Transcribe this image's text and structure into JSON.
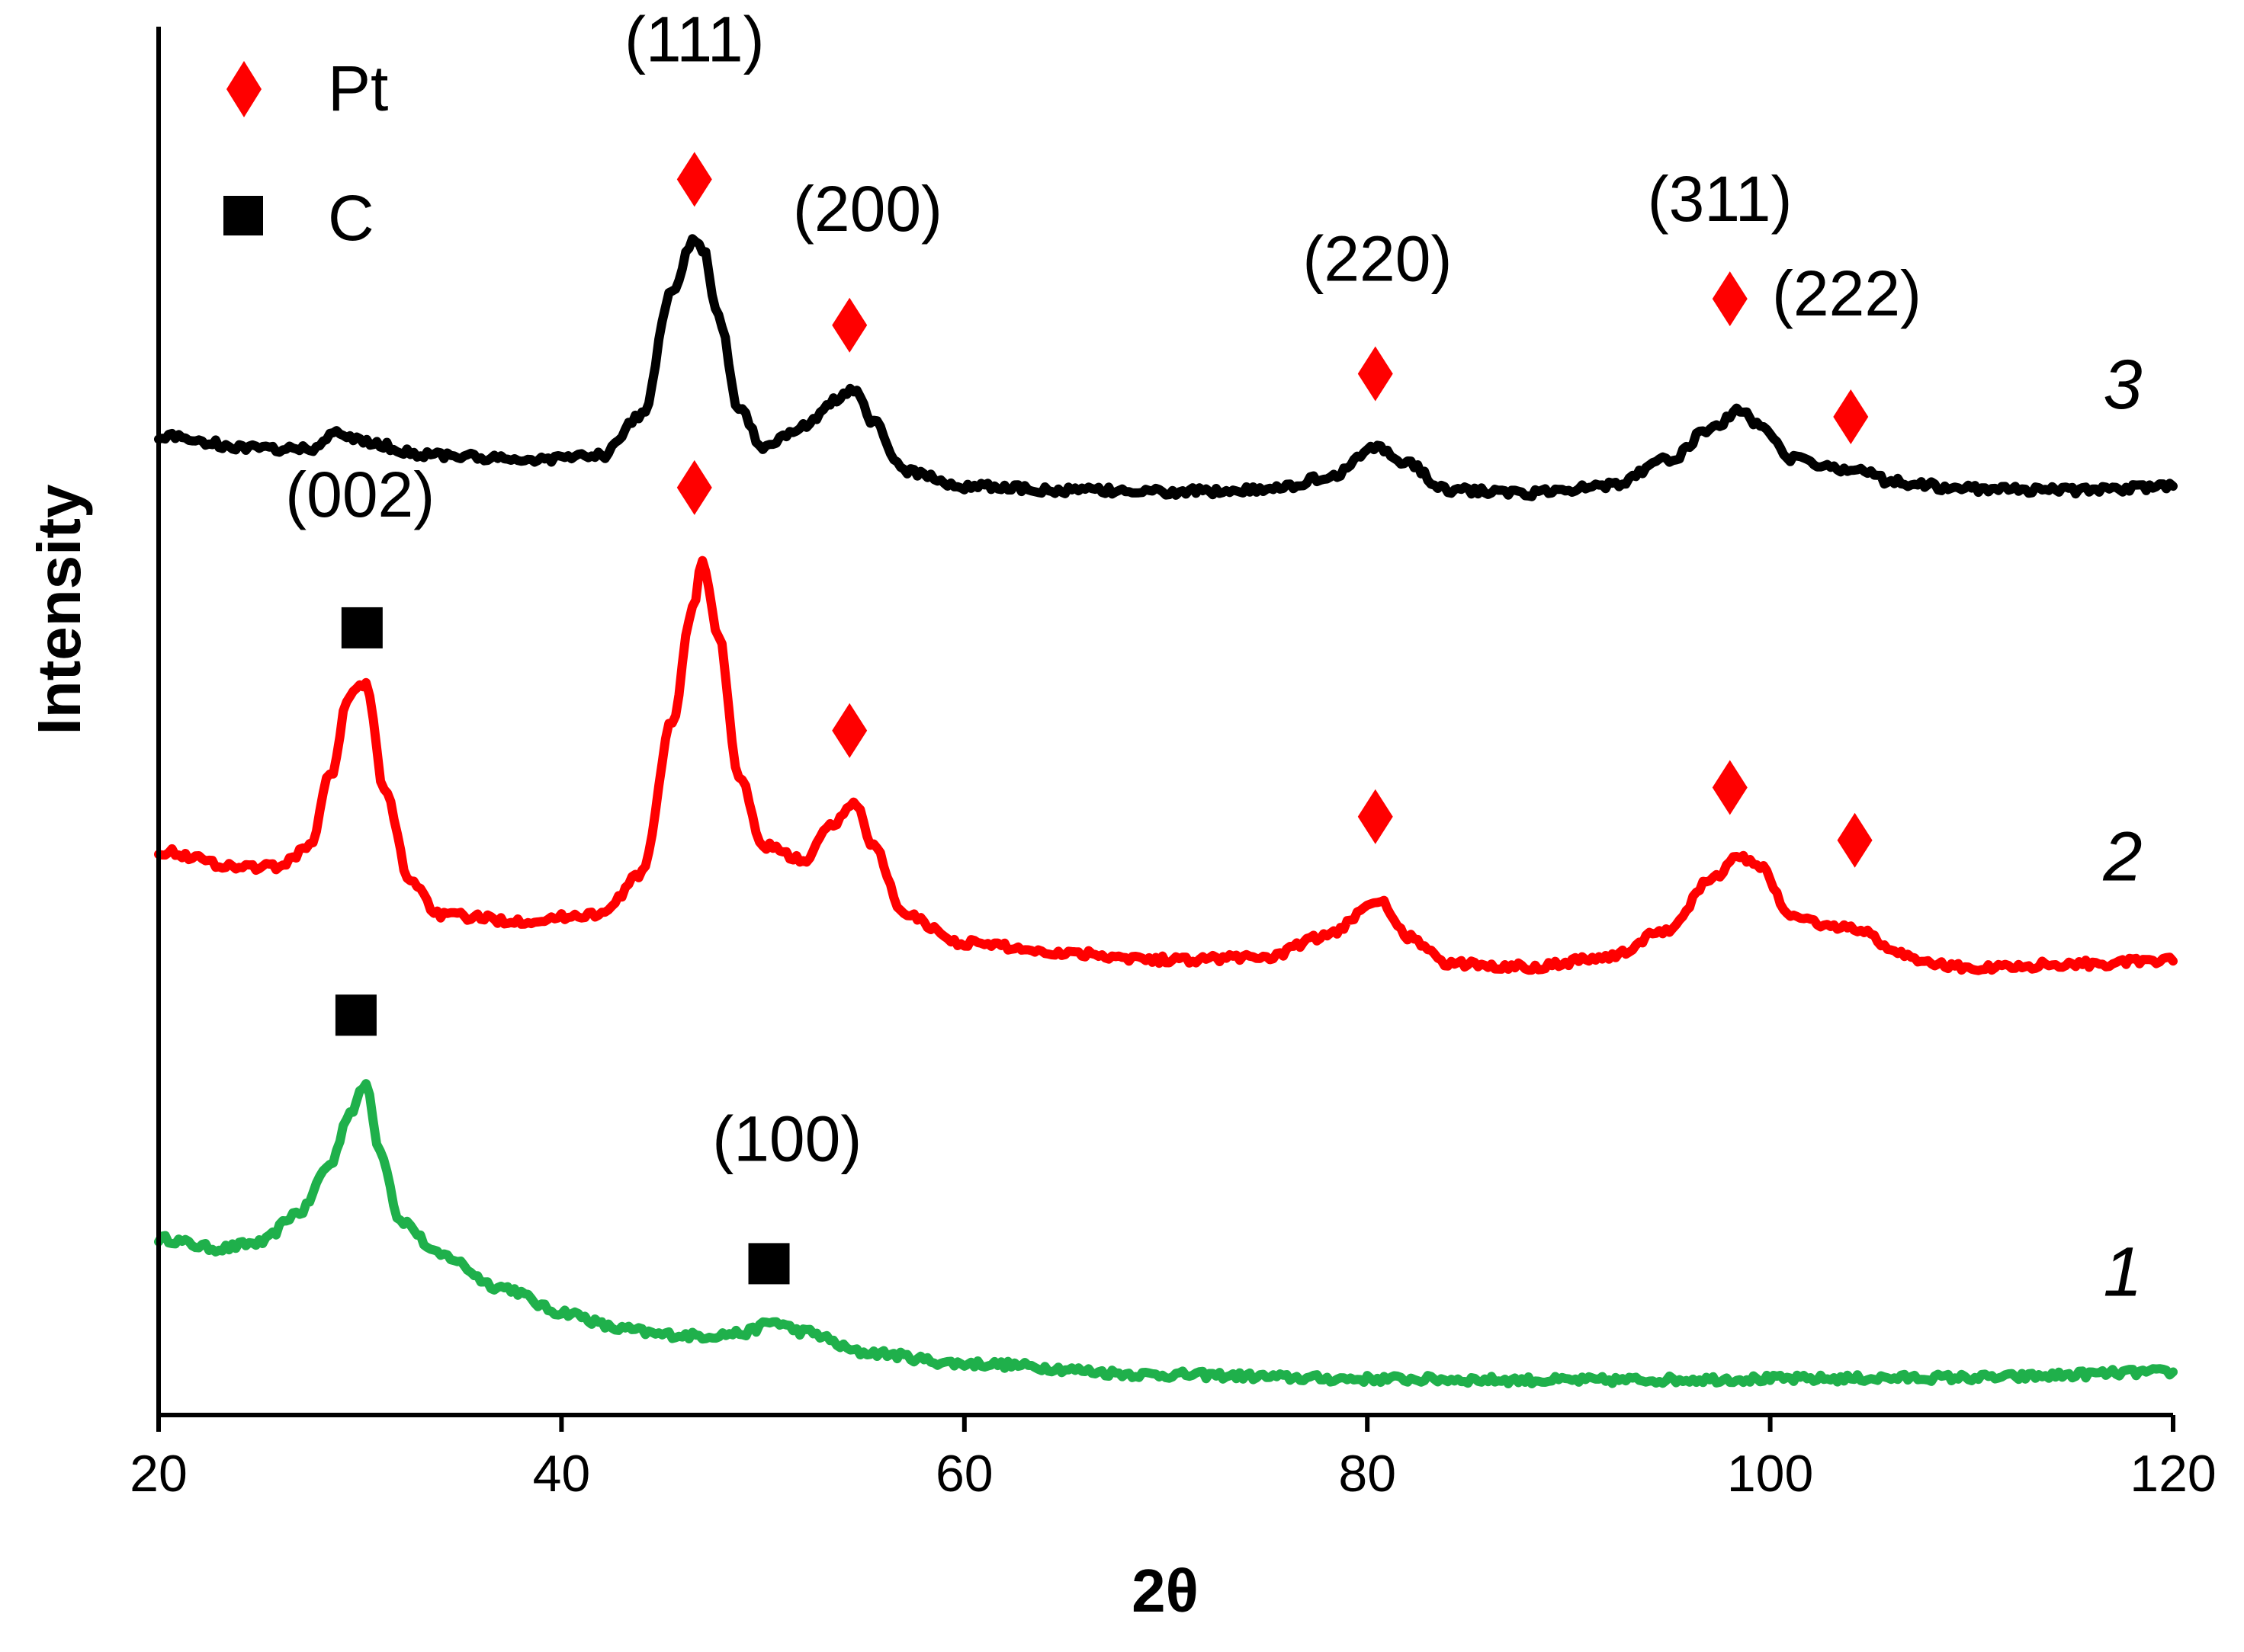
{
  "chart_data": {
    "type": "line",
    "title": "",
    "xlabel": "2θ",
    "ylabel": "Intensity",
    "xlim": [
      20,
      120
    ],
    "ylim": [
      0,
      100
    ],
    "xticks": [
      20,
      40,
      60,
      80,
      100,
      120
    ],
    "xtick_labels": [
      "20",
      "40",
      "60",
      "80",
      "100",
      "120"
    ],
    "grid": false,
    "legend": {
      "position": "top-left",
      "entries": [
        {
          "label": "Pt",
          "marker": "diamond",
          "color": "#ff0000"
        },
        {
          "label": "C",
          "marker": "square",
          "color": "#000000"
        }
      ]
    },
    "series": [
      {
        "name": "1",
        "color": "#1fb04b",
        "x": [
          20,
          23,
          25,
          27,
          28.5,
          29.5,
          30.3,
          31,
          32,
          34,
          37,
          40,
          43,
          45,
          47,
          49,
          50.5,
          52,
          55,
          60,
          70,
          80,
          90,
          100,
          110,
          120
        ],
        "y": [
          12.7,
          12.0,
          12.4,
          14.6,
          18.0,
          21.8,
          23.8,
          19.0,
          14.0,
          11.5,
          9.2,
          7.4,
          6.2,
          5.8,
          5.7,
          5.9,
          6.7,
          6.0,
          4.5,
          3.7,
          2.9,
          2.6,
          2.5,
          2.6,
          2.7,
          3.1
        ]
      },
      {
        "name": "2",
        "color": "#ff0000",
        "x": [
          20,
          24,
          26,
          27.5,
          28.5,
          29.5,
          30.3,
          31.2,
          32.5,
          34,
          38,
          42,
          44,
          45.5,
          46.5,
          47,
          47.8,
          48.8,
          50,
          52,
          53.5,
          54.5,
          55.5,
          57,
          60,
          65,
          70,
          75,
          78,
          80.5,
          82,
          84,
          88,
          92,
          95,
          97,
          98.5,
          99.5,
          101,
          103,
          104.5,
          106,
          108,
          110,
          115,
          120
        ],
        "y": [
          40.6,
          39.5,
          39.5,
          41.0,
          46.0,
          52.0,
          52.6,
          45.0,
          38.5,
          36.0,
          35.6,
          36.1,
          39.0,
          50.0,
          58.0,
          61.5,
          56.0,
          46.0,
          41.0,
          40.0,
          42.5,
          44.2,
          41.0,
          36.0,
          34.0,
          33.3,
          32.8,
          33.0,
          34.5,
          37.1,
          34.5,
          32.5,
          32.3,
          33.0,
          35.0,
          38.5,
          40.2,
          39.5,
          36.0,
          35.2,
          35.0,
          33.5,
          32.5,
          32.2,
          32.5,
          32.7
        ]
      },
      {
        "name": "3",
        "color": "#000000",
        "x": [
          20,
          25,
          27.5,
          29,
          30.5,
          33,
          38,
          42,
          44,
          45.5,
          46.5,
          47,
          47.8,
          48.8,
          50,
          52,
          53.5,
          54.5,
          55.5,
          57,
          60,
          65,
          70,
          75,
          78,
          80.5,
          82,
          84,
          88,
          92,
          95,
          97,
          98.5,
          99.5,
          101,
          103,
          104.5,
          106,
          110,
          115,
          120
        ],
        "y": [
          70.5,
          69.6,
          69.6,
          70.7,
          70.0,
          69.2,
          68.8,
          69.1,
          72.0,
          81.0,
          84.5,
          84.0,
          79.0,
          72.5,
          69.8,
          71.2,
          73.0,
          73.9,
          71.5,
          68.0,
          66.9,
          66.6,
          66.5,
          66.6,
          67.5,
          69.7,
          68.5,
          66.6,
          66.4,
          67.0,
          68.8,
          71.0,
          72.3,
          71.3,
          68.9,
          68.2,
          68.2,
          67.2,
          66.7,
          66.6,
          66.9
        ]
      }
    ],
    "annotations": [
      {
        "text": "(111)",
        "x": 46.6,
        "y": 97.5
      },
      {
        "text": "(200)",
        "x": 55.2,
        "y": 85.3
      },
      {
        "text": "(220)",
        "x": 80.5,
        "y": 81.7
      },
      {
        "text": "(311)",
        "x": 97.5,
        "y": 86.0
      },
      {
        "text": "(222)",
        "x": 103.8,
        "y": 79.2
      },
      {
        "text": "(002)",
        "x": 30.0,
        "y": 64.7
      },
      {
        "text": "(100)",
        "x": 51.2,
        "y": 18.3
      }
    ],
    "markers": [
      {
        "kind": "Pt",
        "shape": "diamond",
        "x": 46.6,
        "y": 89.0
      },
      {
        "kind": "Pt",
        "shape": "diamond",
        "x": 54.3,
        "y": 78.5
      },
      {
        "kind": "Pt",
        "shape": "diamond",
        "x": 80.4,
        "y": 75.0
      },
      {
        "kind": "Pt",
        "shape": "diamond",
        "x": 98.0,
        "y": 80.4
      },
      {
        "kind": "Pt",
        "shape": "diamond",
        "x": 104.0,
        "y": 71.9
      },
      {
        "kind": "Pt",
        "shape": "diamond",
        "x": 46.6,
        "y": 66.8
      },
      {
        "kind": "Pt",
        "shape": "diamond",
        "x": 54.3,
        "y": 49.3
      },
      {
        "kind": "Pt",
        "shape": "diamond",
        "x": 80.4,
        "y": 43.1
      },
      {
        "kind": "Pt",
        "shape": "diamond",
        "x": 98.0,
        "y": 45.2
      },
      {
        "kind": "Pt",
        "shape": "diamond",
        "x": 104.2,
        "y": 41.4
      },
      {
        "kind": "C",
        "shape": "square",
        "x": 30.1,
        "y": 56.7
      },
      {
        "kind": "C",
        "shape": "square",
        "x": 29.8,
        "y": 28.8
      },
      {
        "kind": "C",
        "shape": "square",
        "x": 50.3,
        "y": 10.9
      }
    ],
    "curve_labels": [
      {
        "text": "3",
        "x": 117.5,
        "y": 72.5
      },
      {
        "text": "2",
        "x": 117.5,
        "y": 38.5
      },
      {
        "text": "1",
        "x": 117.5,
        "y": 8.6
      }
    ]
  }
}
